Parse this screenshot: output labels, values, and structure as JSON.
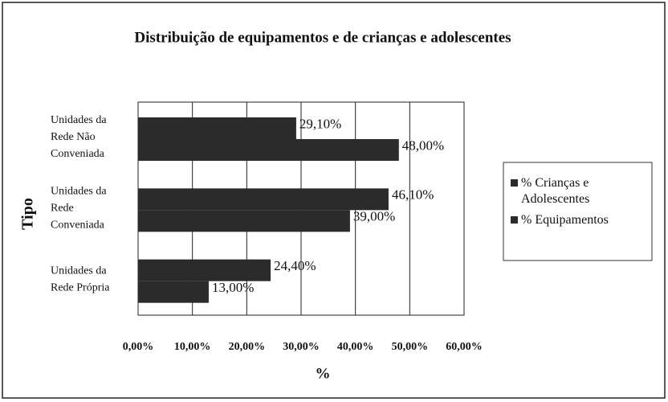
{
  "chart_data": {
    "type": "barh",
    "title": "Distribuição de equipamentos e de crianças e  adolescentes",
    "xlabel": "%",
    "ylabel": "Tipo",
    "categories": [
      "Unidades da\nRede Não\nConveniada",
      "Unidades da\nRede\nConveniada",
      "Unidades da\nRede Própria"
    ],
    "series": [
      {
        "name": "% Crianças e\nAdolescentes",
        "color": "#2b2b2b",
        "values": [
          29.1,
          46.1,
          24.4
        ],
        "value_labels": [
          "29,10%",
          "46,10%",
          "24,40%"
        ]
      },
      {
        "name": "% Equipamentos",
        "color": "#2b2b2b",
        "values": [
          48.0,
          39.0,
          13.0
        ],
        "value_labels": [
          "48,00%",
          "39,00%",
          "13,00%"
        ]
      }
    ],
    "xlim": [
      0,
      60
    ],
    "xticks": [
      {
        "value": 0,
        "label": "0,00%"
      },
      {
        "value": 10,
        "label": "10,00%"
      },
      {
        "value": 20,
        "label": "20,00%"
      },
      {
        "value": 30,
        "label": "30,00%"
      },
      {
        "value": 40,
        "label": "40,00%"
      },
      {
        "value": 50,
        "label": "50,00%"
      },
      {
        "value": 60,
        "label": "60,00%"
      }
    ],
    "grid": true,
    "legend": "right"
  }
}
